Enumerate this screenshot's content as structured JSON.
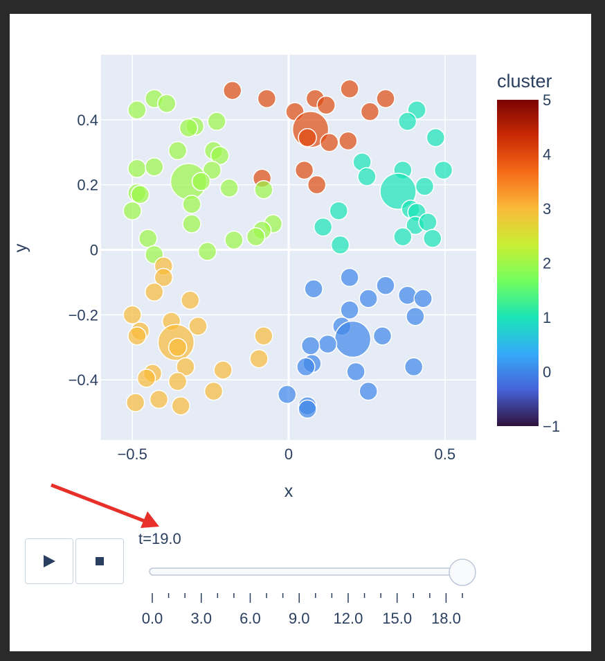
{
  "chart_data": {
    "type": "scatter",
    "xlabel": "x",
    "ylabel": "y",
    "xlim": [
      -0.6,
      0.6
    ],
    "ylim": [
      -0.585,
      0.6
    ],
    "x_ticks": [
      -0.5,
      0,
      0.5
    ],
    "x_tick_labels": [
      "−0.5",
      "0",
      "0.5"
    ],
    "y_ticks": [
      -0.4,
      -0.2,
      0,
      0.2,
      0.4
    ],
    "y_tick_labels": [
      "−0.4",
      "−0.2",
      "0",
      "0.2",
      "0.4"
    ],
    "grid": true,
    "colorscale": "turbo",
    "colorbar": {
      "title": "cluster",
      "range": [
        -1,
        5
      ],
      "ticks": [
        -1,
        0,
        1,
        2,
        3,
        4,
        5
      ],
      "tick_labels": [
        "−1",
        "0",
        "1",
        "2",
        "3",
        "4",
        "5"
      ],
      "stops": [
        "#30123b",
        "#4662d7",
        "#36aaf9",
        "#1ae4b6",
        "#72fe5e",
        "#c8ef34",
        "#faba39",
        "#f66b19",
        "#ca2a04",
        "#7a0403"
      ]
    },
    "marker_opacity": 0.7,
    "points": [
      {
        "x": -0.18,
        "y": 0.49,
        "cluster": 4,
        "big": false
      },
      {
        "x": -0.07,
        "y": 0.465,
        "cluster": 4,
        "big": false
      },
      {
        "x": 0.02,
        "y": 0.425,
        "cluster": 4,
        "big": false
      },
      {
        "x": 0.085,
        "y": 0.465,
        "cluster": 4,
        "big": false
      },
      {
        "x": 0.12,
        "y": 0.445,
        "cluster": 4,
        "big": false
      },
      {
        "x": 0.195,
        "y": 0.495,
        "cluster": 4,
        "big": false
      },
      {
        "x": 0.31,
        "y": 0.465,
        "cluster": 4,
        "big": false
      },
      {
        "x": 0.26,
        "y": 0.425,
        "cluster": 4,
        "big": false
      },
      {
        "x": 0.07,
        "y": 0.37,
        "cluster": 4,
        "big": true
      },
      {
        "x": 0.06,
        "y": 0.345,
        "cluster": 4,
        "big": false
      },
      {
        "x": 0.13,
        "y": 0.33,
        "cluster": 4,
        "big": false
      },
      {
        "x": 0.19,
        "y": 0.335,
        "cluster": 4,
        "big": false
      },
      {
        "x": 0.05,
        "y": 0.245,
        "cluster": 4,
        "big": false
      },
      {
        "x": 0.09,
        "y": 0.2,
        "cluster": 4,
        "big": false
      },
      {
        "x": -0.085,
        "y": 0.22,
        "cluster": 4,
        "big": false
      },
      {
        "x": 0.41,
        "y": 0.43,
        "cluster": 1,
        "big": false
      },
      {
        "x": 0.38,
        "y": 0.395,
        "cluster": 1,
        "big": false
      },
      {
        "x": 0.47,
        "y": 0.345,
        "cluster": 1,
        "big": false
      },
      {
        "x": 0.235,
        "y": 0.27,
        "cluster": 1,
        "big": false
      },
      {
        "x": 0.25,
        "y": 0.225,
        "cluster": 1,
        "big": false
      },
      {
        "x": 0.365,
        "y": 0.245,
        "cluster": 1,
        "big": false
      },
      {
        "x": 0.495,
        "y": 0.245,
        "cluster": 1,
        "big": false
      },
      {
        "x": 0.35,
        "y": 0.18,
        "cluster": 1,
        "big": true
      },
      {
        "x": 0.435,
        "y": 0.195,
        "cluster": 1,
        "big": false
      },
      {
        "x": 0.39,
        "y": 0.125,
        "cluster": 1,
        "big": false
      },
      {
        "x": 0.41,
        "y": 0.115,
        "cluster": 1,
        "big": false
      },
      {
        "x": 0.16,
        "y": 0.12,
        "cluster": 1,
        "big": false
      },
      {
        "x": 0.11,
        "y": 0.07,
        "cluster": 1,
        "big": false
      },
      {
        "x": 0.405,
        "y": 0.075,
        "cluster": 1,
        "big": false
      },
      {
        "x": 0.445,
        "y": 0.085,
        "cluster": 1,
        "big": false
      },
      {
        "x": 0.365,
        "y": 0.04,
        "cluster": 1,
        "big": false
      },
      {
        "x": 0.46,
        "y": 0.035,
        "cluster": 1,
        "big": false
      },
      {
        "x": 0.165,
        "y": 0.015,
        "cluster": 1,
        "big": false
      },
      {
        "x": -0.43,
        "y": 0.465,
        "cluster": 2,
        "big": false
      },
      {
        "x": -0.39,
        "y": 0.45,
        "cluster": 2,
        "big": false
      },
      {
        "x": -0.485,
        "y": 0.43,
        "cluster": 2,
        "big": false
      },
      {
        "x": -0.3,
        "y": 0.38,
        "cluster": 2,
        "big": false
      },
      {
        "x": -0.32,
        "y": 0.375,
        "cluster": 2,
        "big": false
      },
      {
        "x": -0.23,
        "y": 0.395,
        "cluster": 2,
        "big": false
      },
      {
        "x": -0.355,
        "y": 0.305,
        "cluster": 2,
        "big": false
      },
      {
        "x": -0.24,
        "y": 0.305,
        "cluster": 2,
        "big": false
      },
      {
        "x": -0.22,
        "y": 0.29,
        "cluster": 2,
        "big": false
      },
      {
        "x": -0.485,
        "y": 0.25,
        "cluster": 2,
        "big": false
      },
      {
        "x": -0.43,
        "y": 0.255,
        "cluster": 2,
        "big": false
      },
      {
        "x": -0.245,
        "y": 0.245,
        "cluster": 2,
        "big": false
      },
      {
        "x": -0.32,
        "y": 0.21,
        "cluster": 2,
        "big": true
      },
      {
        "x": -0.28,
        "y": 0.21,
        "cluster": 2,
        "big": false
      },
      {
        "x": -0.19,
        "y": 0.19,
        "cluster": 2,
        "big": false
      },
      {
        "x": -0.08,
        "y": 0.185,
        "cluster": 2,
        "big": false
      },
      {
        "x": -0.485,
        "y": 0.175,
        "cluster": 2,
        "big": false
      },
      {
        "x": -0.475,
        "y": 0.17,
        "cluster": 2,
        "big": false
      },
      {
        "x": -0.31,
        "y": 0.14,
        "cluster": 2,
        "big": false
      },
      {
        "x": -0.5,
        "y": 0.12,
        "cluster": 2,
        "big": false
      },
      {
        "x": -0.31,
        "y": 0.08,
        "cluster": 2,
        "big": false
      },
      {
        "x": -0.05,
        "y": 0.08,
        "cluster": 2,
        "big": false
      },
      {
        "x": -0.085,
        "y": 0.06,
        "cluster": 2,
        "big": false
      },
      {
        "x": -0.105,
        "y": 0.04,
        "cluster": 2,
        "big": false
      },
      {
        "x": -0.175,
        "y": 0.03,
        "cluster": 2,
        "big": false
      },
      {
        "x": -0.45,
        "y": 0.035,
        "cluster": 2,
        "big": false
      },
      {
        "x": -0.26,
        "y": -0.005,
        "cluster": 2,
        "big": false
      },
      {
        "x": -0.43,
        "y": -0.015,
        "cluster": 2,
        "big": false
      },
      {
        "x": -0.4,
        "y": -0.05,
        "cluster": 3,
        "big": false
      },
      {
        "x": -0.4,
        "y": -0.085,
        "cluster": 3,
        "big": false
      },
      {
        "x": -0.43,
        "y": -0.13,
        "cluster": 3,
        "big": false
      },
      {
        "x": -0.315,
        "y": -0.155,
        "cluster": 3,
        "big": false
      },
      {
        "x": -0.5,
        "y": -0.2,
        "cluster": 3,
        "big": false
      },
      {
        "x": -0.375,
        "y": -0.22,
        "cluster": 3,
        "big": false
      },
      {
        "x": -0.29,
        "y": -0.235,
        "cluster": 3,
        "big": false
      },
      {
        "x": -0.475,
        "y": -0.25,
        "cluster": 3,
        "big": false
      },
      {
        "x": -0.485,
        "y": -0.265,
        "cluster": 3,
        "big": false
      },
      {
        "x": -0.08,
        "y": -0.265,
        "cluster": 3,
        "big": false
      },
      {
        "x": -0.36,
        "y": -0.285,
        "cluster": 3,
        "big": true
      },
      {
        "x": -0.355,
        "y": -0.3,
        "cluster": 3,
        "big": false
      },
      {
        "x": -0.095,
        "y": -0.335,
        "cluster": 3,
        "big": false
      },
      {
        "x": -0.33,
        "y": -0.36,
        "cluster": 3,
        "big": false
      },
      {
        "x": -0.21,
        "y": -0.37,
        "cluster": 3,
        "big": false
      },
      {
        "x": -0.435,
        "y": -0.38,
        "cluster": 3,
        "big": false
      },
      {
        "x": -0.455,
        "y": -0.395,
        "cluster": 3,
        "big": false
      },
      {
        "x": -0.355,
        "y": -0.405,
        "cluster": 3,
        "big": false
      },
      {
        "x": -0.24,
        "y": -0.435,
        "cluster": 3,
        "big": false
      },
      {
        "x": -0.415,
        "y": -0.46,
        "cluster": 3,
        "big": false
      },
      {
        "x": -0.49,
        "y": -0.47,
        "cluster": 3,
        "big": false
      },
      {
        "x": -0.345,
        "y": -0.48,
        "cluster": 3,
        "big": false
      },
      {
        "x": 0.195,
        "y": -0.085,
        "cluster": 0,
        "big": false
      },
      {
        "x": 0.08,
        "y": -0.12,
        "cluster": 0,
        "big": false
      },
      {
        "x": 0.31,
        "y": -0.11,
        "cluster": 0,
        "big": false
      },
      {
        "x": 0.38,
        "y": -0.14,
        "cluster": 0,
        "big": false
      },
      {
        "x": 0.43,
        "y": -0.15,
        "cluster": 0,
        "big": false
      },
      {
        "x": 0.255,
        "y": -0.15,
        "cluster": 0,
        "big": false
      },
      {
        "x": 0.195,
        "y": -0.185,
        "cluster": 0,
        "big": false
      },
      {
        "x": 0.405,
        "y": -0.205,
        "cluster": 0,
        "big": false
      },
      {
        "x": 0.17,
        "y": -0.235,
        "cluster": 0,
        "big": false
      },
      {
        "x": 0.3,
        "y": -0.265,
        "cluster": 0,
        "big": false
      },
      {
        "x": 0.205,
        "y": -0.275,
        "cluster": 0,
        "big": true
      },
      {
        "x": 0.125,
        "y": -0.29,
        "cluster": 0,
        "big": false
      },
      {
        "x": 0.07,
        "y": -0.295,
        "cluster": 0,
        "big": false
      },
      {
        "x": 0.075,
        "y": -0.35,
        "cluster": 0,
        "big": false
      },
      {
        "x": 0.055,
        "y": -0.36,
        "cluster": 0,
        "big": false
      },
      {
        "x": 0.215,
        "y": -0.375,
        "cluster": 0,
        "big": false
      },
      {
        "x": 0.4,
        "y": -0.36,
        "cluster": 0,
        "big": false
      },
      {
        "x": 0.255,
        "y": -0.435,
        "cluster": 0,
        "big": false
      },
      {
        "x": -0.005,
        "y": -0.445,
        "cluster": 0,
        "big": false
      },
      {
        "x": 0.06,
        "y": -0.48,
        "cluster": 0,
        "big": false
      },
      {
        "x": 0.06,
        "y": -0.49,
        "cluster": 0,
        "big": false
      }
    ]
  },
  "animation": {
    "play_icon": "play-icon",
    "stop_icon": "stop-icon",
    "current_label": "t=19.0",
    "slider_min": 0,
    "slider_max": 19,
    "slider_value": 19,
    "tick_count": 20,
    "step_labels": [
      "0.0",
      "3.0",
      "6.0",
      "9.0",
      "12.0",
      "15.0",
      "18.0"
    ],
    "step_values": [
      0,
      3,
      6,
      9,
      12,
      15,
      18
    ]
  },
  "annotation": {
    "arrow_color": "#e8302a",
    "plot_bg": "#e5ecf6"
  }
}
